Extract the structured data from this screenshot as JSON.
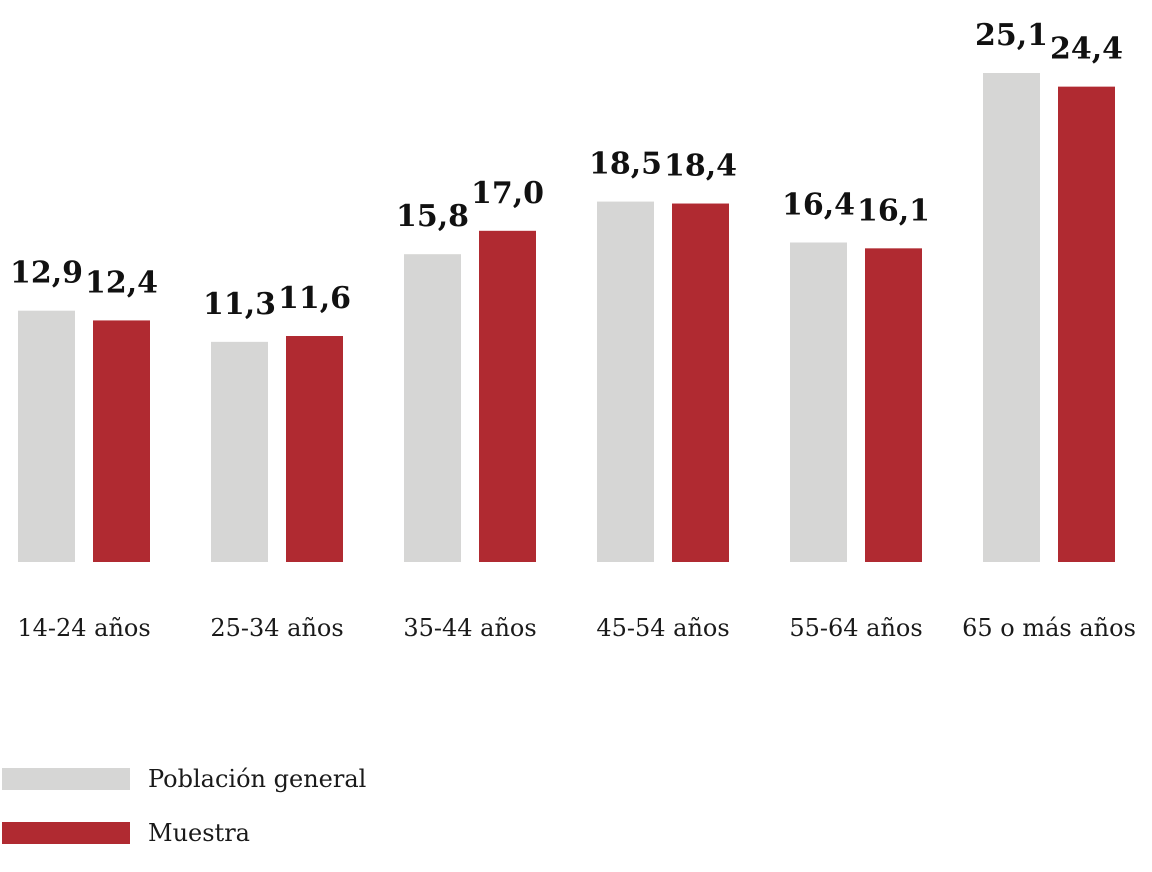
{
  "chart_data": {
    "type": "bar",
    "categories": [
      "14-24 años",
      "25-34 años",
      "35-44 años",
      "45-54 años",
      "55-64 años",
      "65 o más años"
    ],
    "series": [
      {
        "name": "Población general",
        "color": "#d6d6d5",
        "values": [
          12.9,
          11.3,
          15.8,
          18.5,
          16.4,
          25.1
        ],
        "labels": [
          "12,9",
          "11,3",
          "15,8",
          "18,5",
          "16,4",
          "25,1"
        ]
      },
      {
        "name": "Muestra",
        "color": "#b02a31",
        "values": [
          12.4,
          11.6,
          17.0,
          18.4,
          16.1,
          24.4
        ],
        "labels": [
          "12,4",
          "11,6",
          "17,0",
          "18,4",
          "16,1",
          "24,4"
        ]
      }
    ],
    "ylim": [
      0,
      25.1
    ],
    "grid": false,
    "legend_position": "bottom-left"
  }
}
